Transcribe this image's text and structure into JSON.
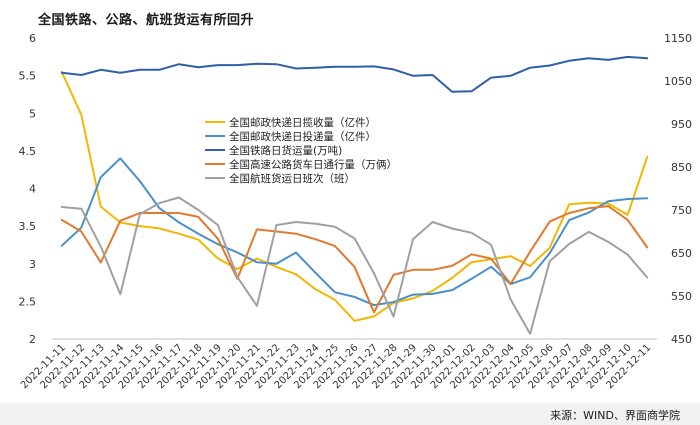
{
  "title": "全国铁路、公路、航班货运有所回升",
  "source_note": "来源：WIND、界面商学院",
  "chart_data": {
    "type": "line",
    "categories": [
      "2022-11-11",
      "2022-11-12",
      "2022-11-13",
      "2022-11-14",
      "2022-11-15",
      "2022-11-16",
      "2022-11-17",
      "2022-11-18",
      "2022-11-19",
      "2022-11-20",
      "2022-11-21",
      "2022-11-22",
      "2022-11-23",
      "2022-11-24",
      "2022-11-25",
      "2022-11-26",
      "2022-11-27",
      "2022-11-28",
      "2022-11-29",
      "2022-11-30",
      "2022-12-01",
      "2022-12-02",
      "2022-12-03",
      "2022-12-04",
      "2022-12-05",
      "2022-12-06",
      "2022-12-07",
      "2022-12-08",
      "2022-12-09",
      "2022-12-10",
      "2022-12-11"
    ],
    "left_axis": {
      "min": 2,
      "max": 6,
      "ticks": [
        "2",
        "2.5",
        "3",
        "3.5",
        "4",
        "4.5",
        "5",
        "5.5",
        "6"
      ]
    },
    "right_axis": {
      "min": 450,
      "max": 1150,
      "ticks": [
        "450",
        "550",
        "650",
        "750",
        "850",
        "950",
        "1050",
        "1150"
      ]
    },
    "series": [
      {
        "name": "全国邮政快递日揽收量（亿件）",
        "axis": "left",
        "color": "#f2b705",
        "values": [
          5.55,
          4.98,
          3.76,
          3.55,
          3.5,
          3.47,
          3.4,
          3.32,
          3.07,
          2.93,
          3.07,
          2.96,
          2.86,
          2.66,
          2.52,
          2.24,
          2.3,
          2.48,
          2.54,
          2.64,
          2.81,
          3.02,
          3.06,
          3.1,
          2.97,
          3.21,
          3.79,
          3.81,
          3.8,
          3.65,
          4.42
        ]
      },
      {
        "name": "全国邮政快递日投递量（亿件）",
        "axis": "left",
        "color": "#4a90c8",
        "values": [
          3.24,
          3.48,
          4.15,
          4.4,
          4.1,
          3.74,
          3.55,
          3.4,
          3.26,
          3.15,
          3.02,
          3.0,
          3.15,
          2.88,
          2.62,
          2.56,
          2.45,
          2.49,
          2.59,
          2.6,
          2.65,
          2.8,
          2.96,
          2.73,
          2.82,
          3.14,
          3.58,
          3.68,
          3.83,
          3.86,
          3.87
        ]
      },
      {
        "name": "全国铁路日货运量(万吨)",
        "axis": "right",
        "color": "#2e5fa8",
        "values": [
          1069,
          1064,
          1076,
          1069,
          1076,
          1076,
          1089,
          1082,
          1087,
          1087,
          1090,
          1089,
          1079,
          1081,
          1083,
          1083,
          1084,
          1077,
          1062,
          1064,
          1025,
          1026,
          1058,
          1062,
          1081,
          1086,
          1097,
          1103,
          1099,
          1106,
          1103
        ]
      },
      {
        "name": "全国高速公路货车日通行量（万俩）",
        "axis": "right",
        "color": "#e07a2e",
        "values": [
          727,
          700,
          628,
          725,
          743,
          743,
          743,
          734,
          683,
          590,
          705,
          700,
          695,
          682,
          666,
          618,
          512,
          599,
          611,
          611,
          620,
          647,
          637,
          578,
          653,
          723,
          743,
          754,
          759,
          727,
          663
        ]
      },
      {
        "name": "全国航班货运日班次（班）",
        "axis": "right",
        "color": "#a0a0a0",
        "values": [
          757,
          753,
          665,
          554,
          740,
          766,
          779,
          750,
          715,
          594,
          527,
          715,
          722,
          718,
          711,
          684,
          603,
          502,
          682,
          722,
          707,
          697,
          669,
          542,
          462,
          631,
          671,
          699,
          676,
          646,
          593
        ]
      }
    ]
  }
}
